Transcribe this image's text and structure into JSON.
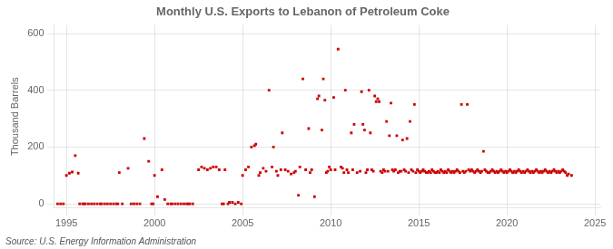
{
  "chart_data": {
    "type": "scatter",
    "title": "Monthly U.S. Exports to Lebanon of Petroleum Coke",
    "ylabel": "Thousand Barrels",
    "annotations": [
      "Source: U.S. Energy Information Administration"
    ],
    "xlim": [
      1994.3,
      2025.3
    ],
    "ylim": [
      -15,
      630
    ],
    "xticks": [
      1995,
      2000,
      2005,
      2010,
      2015,
      2020,
      2025
    ],
    "yticks": [
      0,
      200,
      400,
      600
    ],
    "grid": true,
    "color": "#cc0000",
    "marker": "square",
    "x": [
      1994.5,
      1994.67,
      1994.83,
      1995.0,
      1995.17,
      1995.33,
      1995.5,
      1995.67,
      1995.75,
      1995.92,
      1996.0,
      1996.08,
      1996.25,
      1996.42,
      1996.58,
      1996.75,
      1996.92,
      1997.0,
      1997.17,
      1997.33,
      1997.5,
      1997.67,
      1997.83,
      1997.92,
      1998.0,
      1998.17,
      1998.5,
      1998.67,
      1998.83,
      1999.0,
      1999.17,
      1999.42,
      1999.67,
      1999.83,
      1999.92,
      2000.0,
      2000.17,
      2000.42,
      2000.58,
      2000.75,
      2000.92,
      2001.0,
      2001.17,
      2001.33,
      2001.5,
      2001.67,
      2001.83,
      2001.92,
      2002.0,
      2002.17,
      2002.5,
      2002.67,
      2002.83,
      2003.0,
      2003.17,
      2003.33,
      2003.5,
      2003.67,
      2003.83,
      2003.92,
      2004.0,
      2004.17,
      2004.25,
      2004.42,
      2004.58,
      2004.75,
      2004.92,
      2005.0,
      2005.17,
      2005.33,
      2005.5,
      2005.67,
      2005.75,
      2005.92,
      2006.0,
      2006.17,
      2006.33,
      2006.5,
      2006.67,
      2006.75,
      2006.92,
      2007.0,
      2007.17,
      2007.25,
      2007.42,
      2007.58,
      2007.75,
      2007.92,
      2008.0,
      2008.17,
      2008.25,
      2008.42,
      2008.58,
      2008.75,
      2008.83,
      2008.92,
      2009.08,
      2009.25,
      2009.33,
      2009.5,
      2009.58,
      2009.67,
      2009.75,
      2009.83,
      2009.92,
      2010.0,
      2010.17,
      2010.25,
      2010.42,
      2010.58,
      2010.67,
      2010.75,
      2010.83,
      2010.92,
      2011.0,
      2011.17,
      2011.25,
      2011.33,
      2011.5,
      2011.67,
      2011.75,
      2011.83,
      2011.92,
      2012.0,
      2012.08,
      2012.17,
      2012.25,
      2012.33,
      2012.42,
      2012.5,
      2012.58,
      2012.67,
      2012.75,
      2012.83,
      2012.92,
      2013.0,
      2013.08,
      2013.17,
      2013.25,
      2013.33,
      2013.42,
      2013.5,
      2013.58,
      2013.67,
      2013.75,
      2013.83,
      2013.92,
      2014.0,
      2014.08,
      2014.17,
      2014.25,
      2014.33,
      2014.42,
      2014.5,
      2014.58,
      2014.67,
      2014.75,
      2014.83,
      2014.92,
      2015.0,
      2015.08,
      2015.17,
      2015.25,
      2015.33,
      2015.42,
      2015.5,
      2015.58,
      2015.67,
      2015.75,
      2015.83,
      2015.92,
      2016.0,
      2016.08,
      2016.17,
      2016.25,
      2016.33,
      2016.42,
      2016.5,
      2016.58,
      2016.67,
      2016.75,
      2016.83,
      2016.92,
      2017.0,
      2017.08,
      2017.17,
      2017.25,
      2017.33,
      2017.42,
      2017.5,
      2017.58,
      2017.67,
      2017.75,
      2017.83,
      2017.92,
      2018.0,
      2018.08,
      2018.17,
      2018.25,
      2018.33,
      2018.42,
      2018.5,
      2018.58,
      2018.67,
      2018.75,
      2018.83,
      2018.92,
      2019.0,
      2019.08,
      2019.17,
      2019.25,
      2019.33,
      2019.42,
      2019.5,
      2019.58,
      2019.67,
      2019.75,
      2019.83,
      2019.92,
      2020.0,
      2020.08,
      2020.17,
      2020.25,
      2020.33,
      2020.42,
      2020.5,
      2020.58,
      2020.67,
      2020.75,
      2020.83,
      2020.92,
      2021.0,
      2021.08,
      2021.17,
      2021.25,
      2021.33,
      2021.42,
      2021.5,
      2021.58,
      2021.67,
      2021.75,
      2021.83,
      2021.92,
      2022.0,
      2022.08,
      2022.17,
      2022.25,
      2022.33,
      2022.42,
      2022.5,
      2022.58,
      2022.67,
      2022.75,
      2022.83,
      2022.92,
      2023.0,
      2023.08,
      2023.17,
      2023.25,
      2023.33,
      2023.42,
      2023.5,
      2023.67
    ],
    "values": [
      0,
      0,
      0,
      100,
      108,
      112,
      170,
      108,
      0,
      0,
      0,
      0,
      0,
      0,
      0,
      0,
      0,
      0,
      0,
      0,
      0,
      0,
      0,
      0,
      110,
      0,
      125,
      0,
      0,
      0,
      0,
      230,
      150,
      0,
      0,
      100,
      25,
      120,
      15,
      0,
      0,
      0,
      0,
      0,
      0,
      0,
      0,
      0,
      0,
      0,
      120,
      130,
      125,
      120,
      125,
      130,
      130,
      120,
      0,
      0,
      120,
      0,
      5,
      5,
      0,
      5,
      0,
      100,
      120,
      130,
      200,
      205,
      210,
      100,
      110,
      125,
      115,
      400,
      130,
      200,
      115,
      100,
      120,
      250,
      120,
      115,
      105,
      110,
      115,
      30,
      130,
      440,
      120,
      265,
      110,
      120,
      25,
      370,
      380,
      260,
      440,
      365,
      110,
      115,
      130,
      120,
      375,
      120,
      545,
      130,
      125,
      110,
      400,
      120,
      110,
      250,
      120,
      280,
      110,
      115,
      395,
      280,
      260,
      110,
      120,
      400,
      250,
      120,
      115,
      380,
      360,
      370,
      360,
      115,
      110,
      120,
      115,
      290,
      115,
      240,
      355,
      120,
      115,
      120,
      240,
      110,
      115,
      115,
      225,
      120,
      115,
      230,
      110,
      290,
      120,
      115,
      350,
      110,
      120,
      115,
      110,
      115,
      120,
      115,
      110,
      110,
      115,
      110,
      120,
      115,
      110,
      110,
      115,
      110,
      120,
      115,
      110,
      115,
      110,
      120,
      115,
      110,
      115,
      110,
      115,
      120,
      115,
      110,
      350,
      115,
      110,
      115,
      350,
      120,
      115,
      120,
      115,
      110,
      115,
      120,
      115,
      110,
      115,
      185,
      120,
      115,
      110,
      110,
      115,
      120,
      115,
      110,
      115,
      110,
      115,
      120,
      115,
      110,
      115,
      110,
      115,
      120,
      115,
      110,
      115,
      110,
      115,
      120,
      115,
      110,
      115,
      110,
      115,
      120,
      115,
      110,
      115,
      110,
      115,
      120,
      115,
      110,
      115,
      110,
      115,
      120,
      115,
      110,
      115,
      110,
      115,
      120,
      115,
      110,
      115,
      110,
      115,
      120,
      115,
      110,
      100,
      105,
      100
    ]
  }
}
